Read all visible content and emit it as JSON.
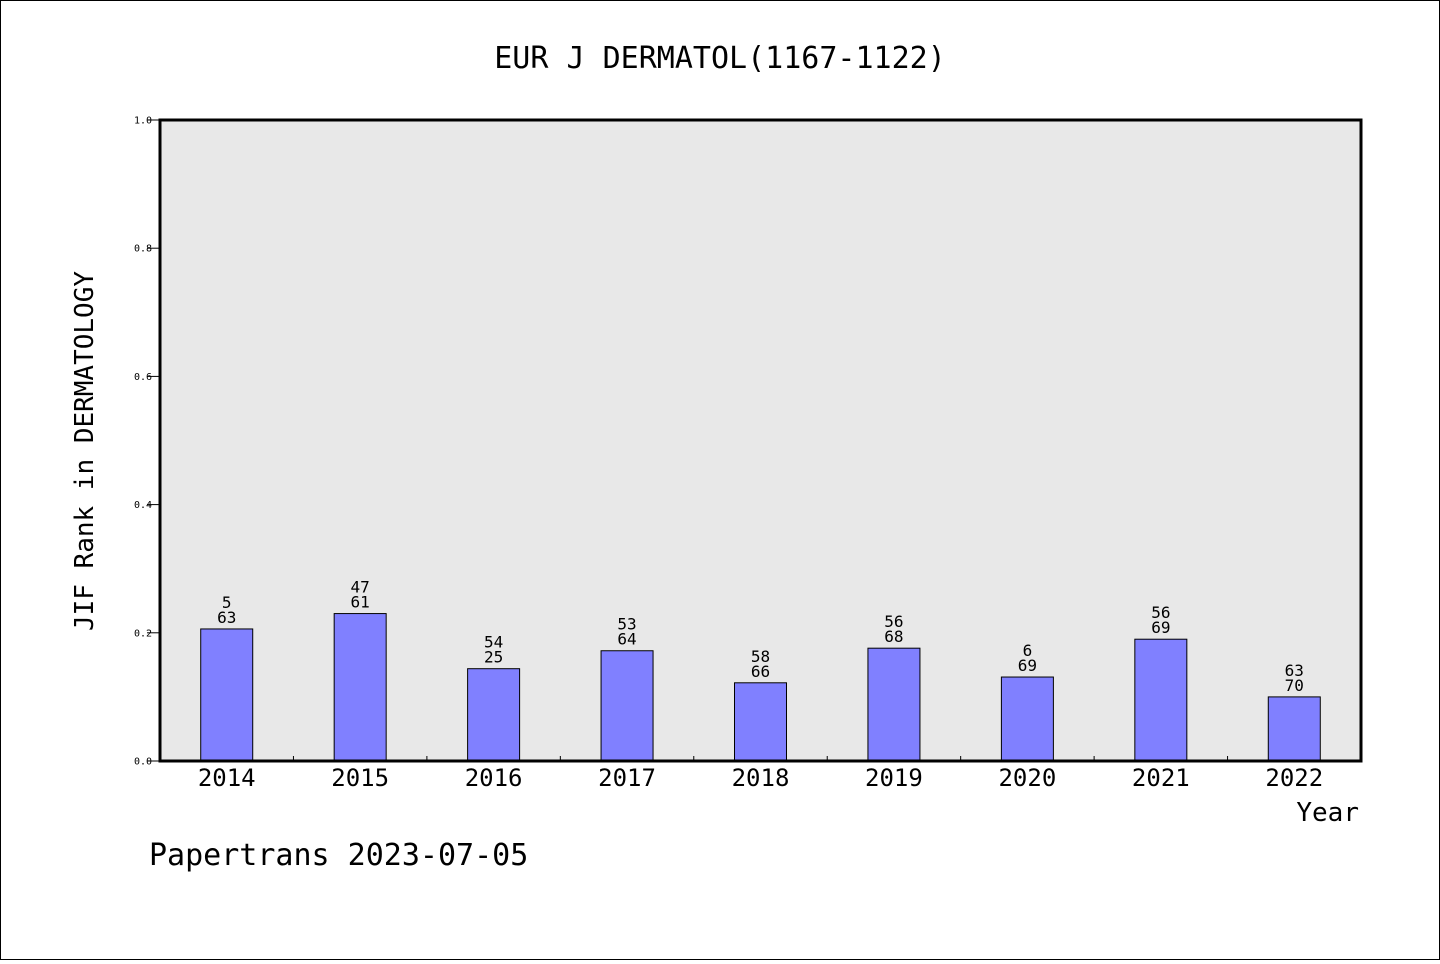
{
  "chart_data": {
    "type": "bar",
    "title": "EUR J DERMATOL(1167-1122)",
    "xlabel": "Year",
    "ylabel": "JIF Rank in DERMATOLOGY",
    "ylim": [
      0,
      1.0
    ],
    "yticks": [
      "0.0",
      "0.2",
      "0.4",
      "0.6",
      "0.8",
      "1.0"
    ],
    "grid": false,
    "categories": [
      "2014",
      "2015",
      "2016",
      "2017",
      "2018",
      "2019",
      "2020",
      "2021",
      "2022"
    ],
    "values": [
      0.206,
      0.23,
      0.144,
      0.172,
      0.122,
      0.176,
      0.131,
      0.19,
      0.1
    ],
    "labels_top": [
      "5",
      "47",
      "54",
      "53",
      "58",
      "56",
      "6",
      "56",
      "63"
    ],
    "labels_bottom": [
      "63",
      "61",
      "25",
      "64",
      "66",
      "68",
      "69",
      "69",
      "70"
    ],
    "colors": {
      "bar": "#8080ff",
      "plot_bg": "#e8e8e8",
      "axes": "#000000"
    }
  },
  "footer": "Papertrans 2023-07-05"
}
